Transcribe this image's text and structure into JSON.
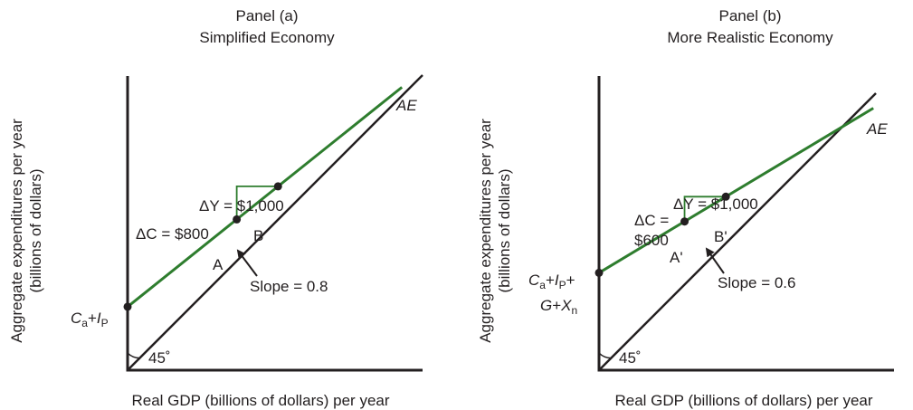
{
  "chart_data": [
    {
      "type": "line",
      "panel_label": "Panel (a)",
      "title": "Simplified Economy",
      "xlabel": "Real GDP (billions of dollars) per year",
      "ylabel_line1": "Aggregate expenditures per year",
      "ylabel_line2": "(billions of dollars)",
      "series": [
        {
          "name": "45° line",
          "color": "#231f20",
          "slope": 1.0,
          "intercept": 0
        },
        {
          "name": "AE",
          "color": "#2e7d2e",
          "slope": 0.8,
          "intercept": 0.215
        }
      ],
      "angle_label": "45˚",
      "ae_label": "AE",
      "intercept_label": {
        "c_letter": "C",
        "c_sub": "a",
        "plus": "+",
        "i_letter": "I",
        "i_sub": "P"
      },
      "points": [
        {
          "label": "A",
          "x": 0.37
        },
        {
          "label": "B",
          "x": 0.51
        }
      ],
      "delta_y_label": "ΔY = $1,000",
      "delta_c_label": "ΔC = $800",
      "slope_label": "Slope = 0.8",
      "grid": false
    },
    {
      "type": "line",
      "panel_label": "Panel (b)",
      "title": "More Realistic Economy",
      "xlabel": "Real GDP (billions of dollars) per year",
      "ylabel_line1": "Aggregate expenditures per year",
      "ylabel_line2": "(billions of dollars)",
      "series": [
        {
          "name": "45° line",
          "color": "#231f20",
          "slope": 1.0,
          "intercept": 0
        },
        {
          "name": "AE",
          "color": "#2e7d2e",
          "slope": 0.6,
          "intercept": 0.33
        }
      ],
      "angle_label": "45˚",
      "ae_label": "AE",
      "intercept_label": {
        "line1_c": "C",
        "line1_c_sub": "a",
        "line1_plus1": "+",
        "line1_i": "I",
        "line1_i_sub": "P",
        "line1_plus2": "+",
        "line2_g": "G",
        "line2_plus": "+",
        "line2_x": "X",
        "line2_x_sub": "n"
      },
      "points": [
        {
          "label": "A'",
          "x": 0.29
        },
        {
          "label": "B'",
          "x": 0.43
        }
      ],
      "delta_y_label": "ΔY = $1,000",
      "delta_c_label_line1": "ΔC =",
      "delta_c_label_line2": "$600",
      "slope_label": "Slope = 0.6",
      "grid": false
    }
  ]
}
